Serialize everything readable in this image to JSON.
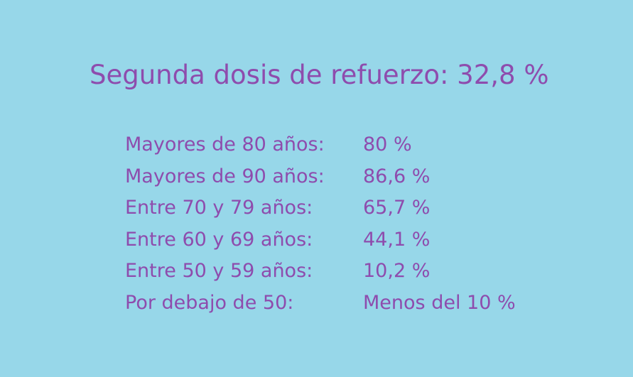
{
  "title": "Segunda dosis de refuerzo: 32,8 %",
  "rows": [
    {
      "label": "Mayores de 80 años:",
      "value": "80 %"
    },
    {
      "label": "Mayores de 90 años:",
      "value": "86,6 %"
    },
    {
      "label": "Entre 70 y 79 años:",
      "value": "65,7 %"
    },
    {
      "label": "Entre 60 y 69 años:",
      "value": "44,1 %"
    },
    {
      "label": "Entre 50 y 59 años:",
      "value": "10,2 %"
    },
    {
      "label": "Por debajo de 50:",
      "value": "Menos del 10 %"
    }
  ],
  "colors": {
    "background": "#97d7e9",
    "text": "#8e4cad"
  }
}
